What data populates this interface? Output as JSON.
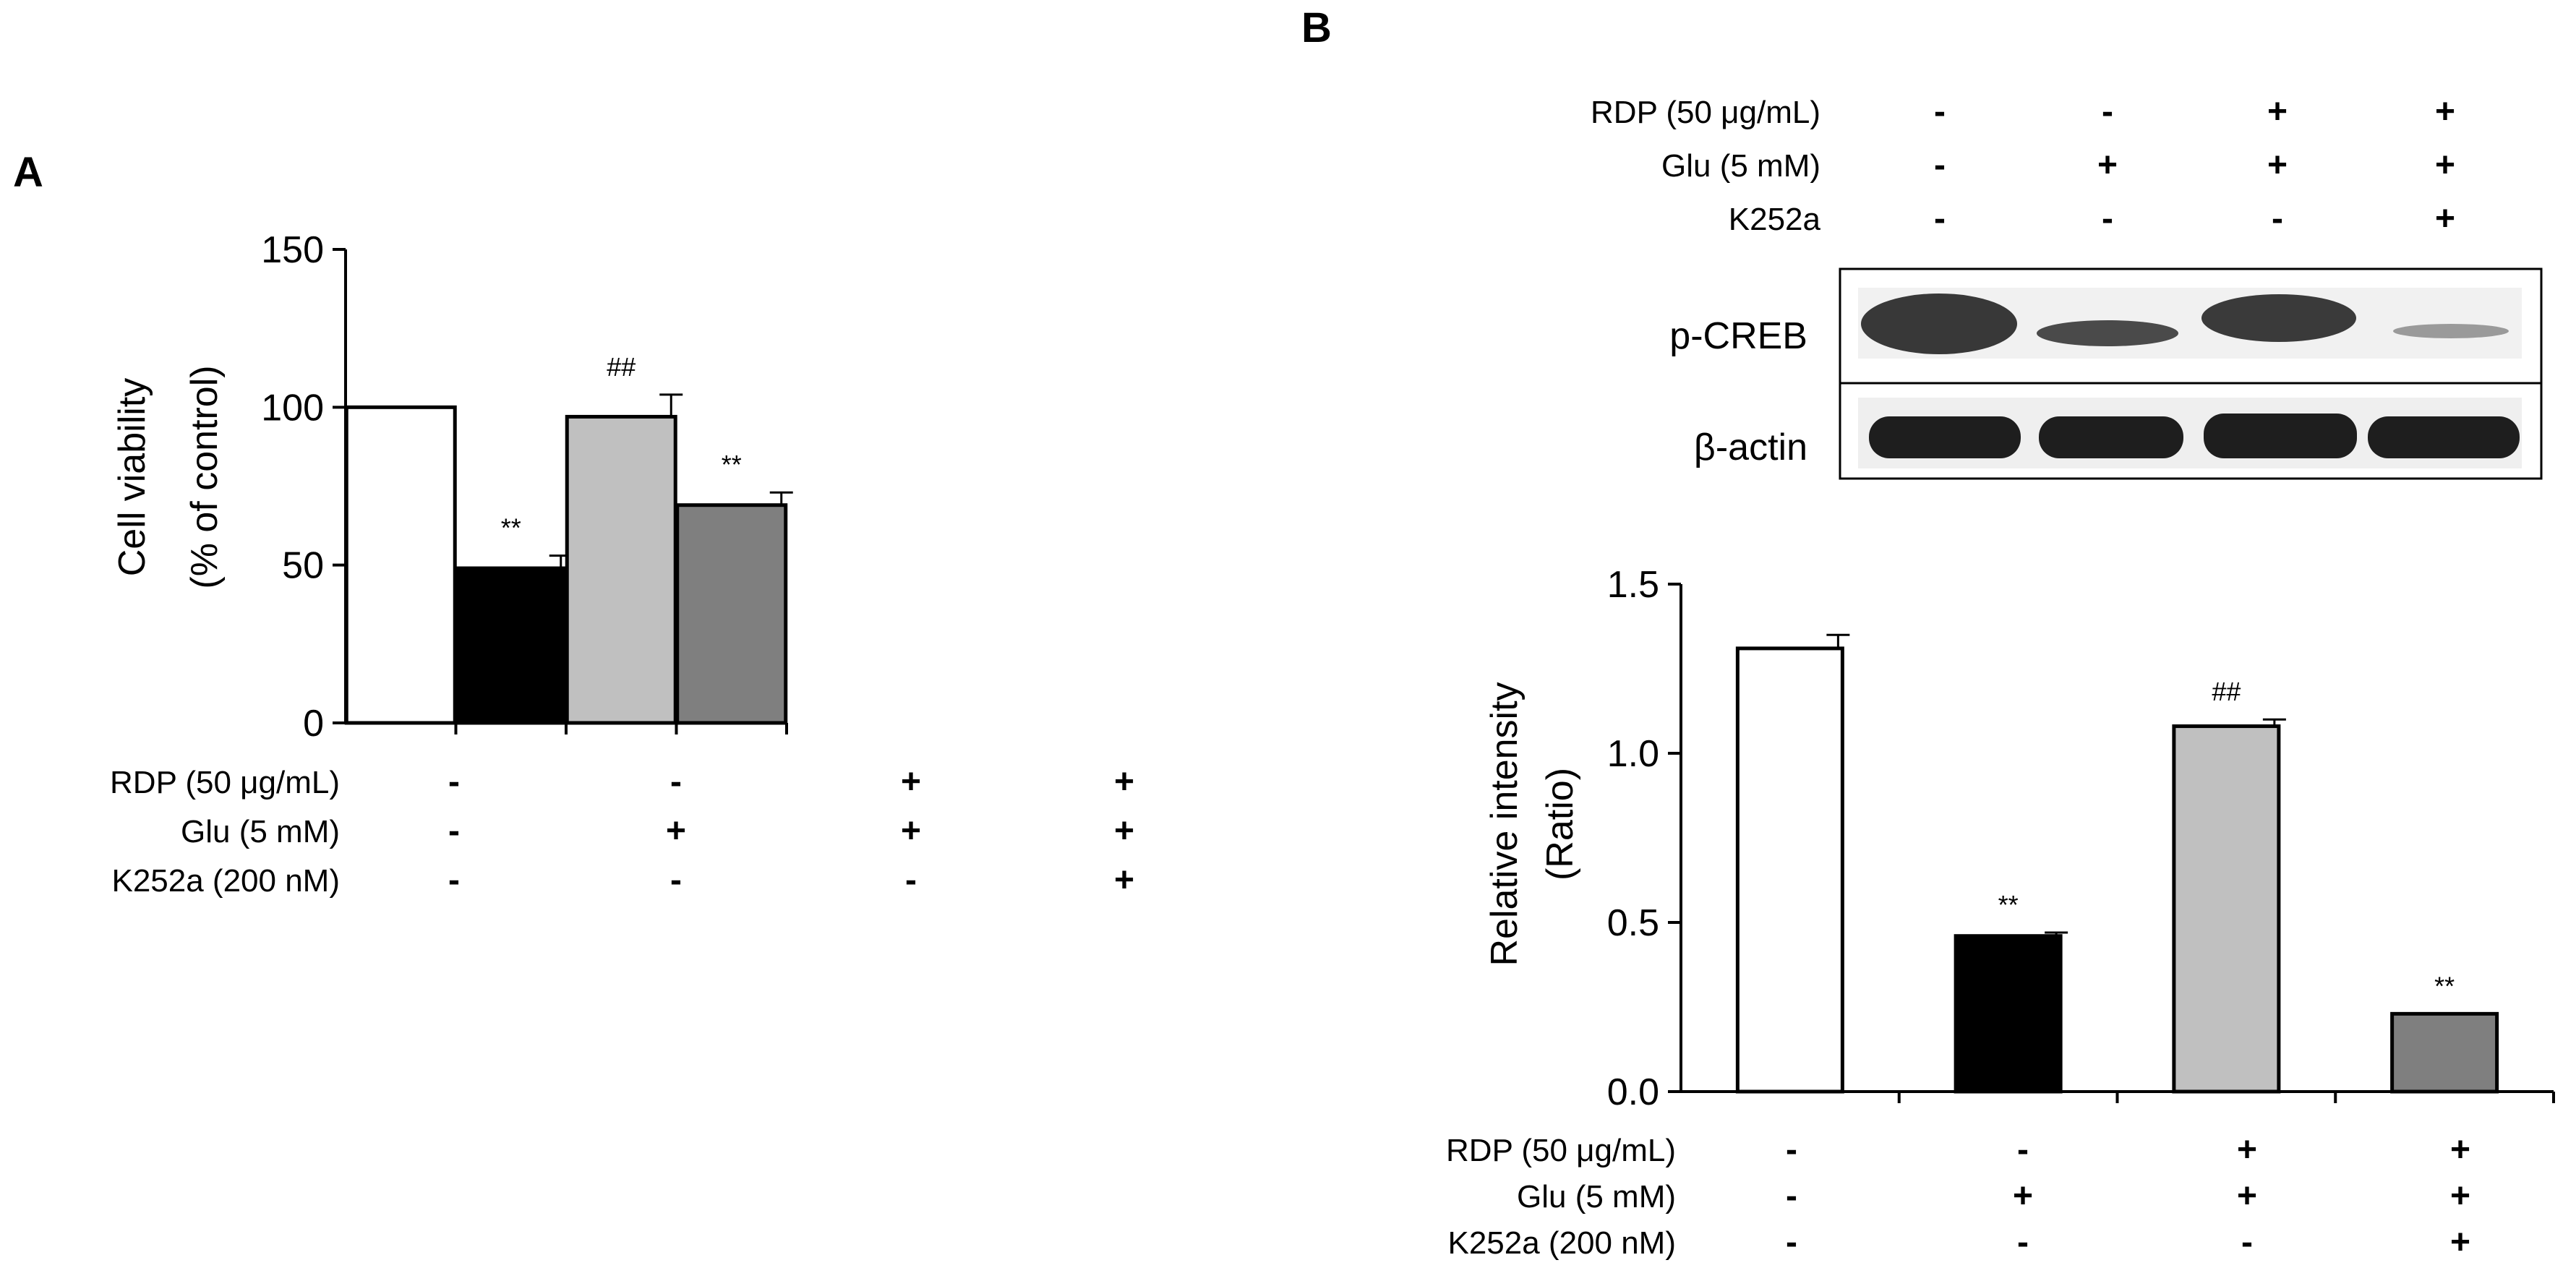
{
  "panels": [
    {
      "letter": "A",
      "chart_data": {
        "type": "bar",
        "ylabel_line1": "Cell viability",
        "ylabel_line2": "(% of control)",
        "ylim": [
          0,
          150
        ],
        "yticks": [
          0,
          50,
          100,
          150
        ],
        "groups": [
          {
            "value": 100,
            "error": 0,
            "color": "#ffffff",
            "sig": ""
          },
          {
            "value": 49,
            "error": 4,
            "color": "#000000",
            "sig": "**"
          },
          {
            "value": 97,
            "error": 7,
            "color": "#c0c0c0",
            "sig": "##"
          },
          {
            "value": 69,
            "error": 4,
            "color": "#7f7f7f",
            "sig": "**"
          }
        ],
        "conditions": [
          {
            "label": "RDP (50 μg/mL)",
            "signs": [
              "-",
              "-",
              "+",
              "+"
            ]
          },
          {
            "label": "Glu (5 mM)",
            "signs": [
              "-",
              "+",
              "+",
              "+"
            ]
          },
          {
            "label": "K252a (200 nM)",
            "signs": [
              "-",
              "-",
              "-",
              "+"
            ]
          }
        ]
      }
    },
    {
      "letter": "B",
      "blot": {
        "conditions": [
          {
            "label": "RDP (50 μg/mL)",
            "signs": [
              "-",
              "-",
              "+",
              "+"
            ]
          },
          {
            "label": "Glu (5 mM)",
            "signs": [
              "-",
              "+",
              "+",
              "+"
            ]
          },
          {
            "label": "K252a",
            "signs": [
              "-",
              "-",
              "-",
              "+"
            ]
          }
        ],
        "rows": [
          {
            "label": "p-CREB"
          },
          {
            "label": "β-actin"
          }
        ]
      },
      "chart_data": {
        "type": "bar",
        "ylabel_line1": "Relative intensity",
        "ylabel_line2": "(Ratio)",
        "ylim": [
          0,
          1.5
        ],
        "yticks": [
          "0.0",
          "0.5",
          "1.0",
          "1.5"
        ],
        "groups": [
          {
            "value": 1.31,
            "error": 0.04,
            "color": "#ffffff",
            "sig": ""
          },
          {
            "value": 0.46,
            "error": 0.01,
            "color": "#000000",
            "sig": "**"
          },
          {
            "value": 1.08,
            "error": 0.02,
            "color": "#c0c0c0",
            "sig": "##"
          },
          {
            "value": 0.23,
            "error": 0.0,
            "color": "#7f7f7f",
            "sig": "**"
          }
        ],
        "conditions": [
          {
            "label": "RDP (50 μg/mL)",
            "signs": [
              "-",
              "-",
              "+",
              "+"
            ]
          },
          {
            "label": "Glu (5 mM)",
            "signs": [
              "-",
              "+",
              "+",
              "+"
            ]
          },
          {
            "label": "K252a (200 nM)",
            "signs": [
              "-",
              "-",
              "-",
              "+"
            ]
          }
        ]
      }
    }
  ]
}
